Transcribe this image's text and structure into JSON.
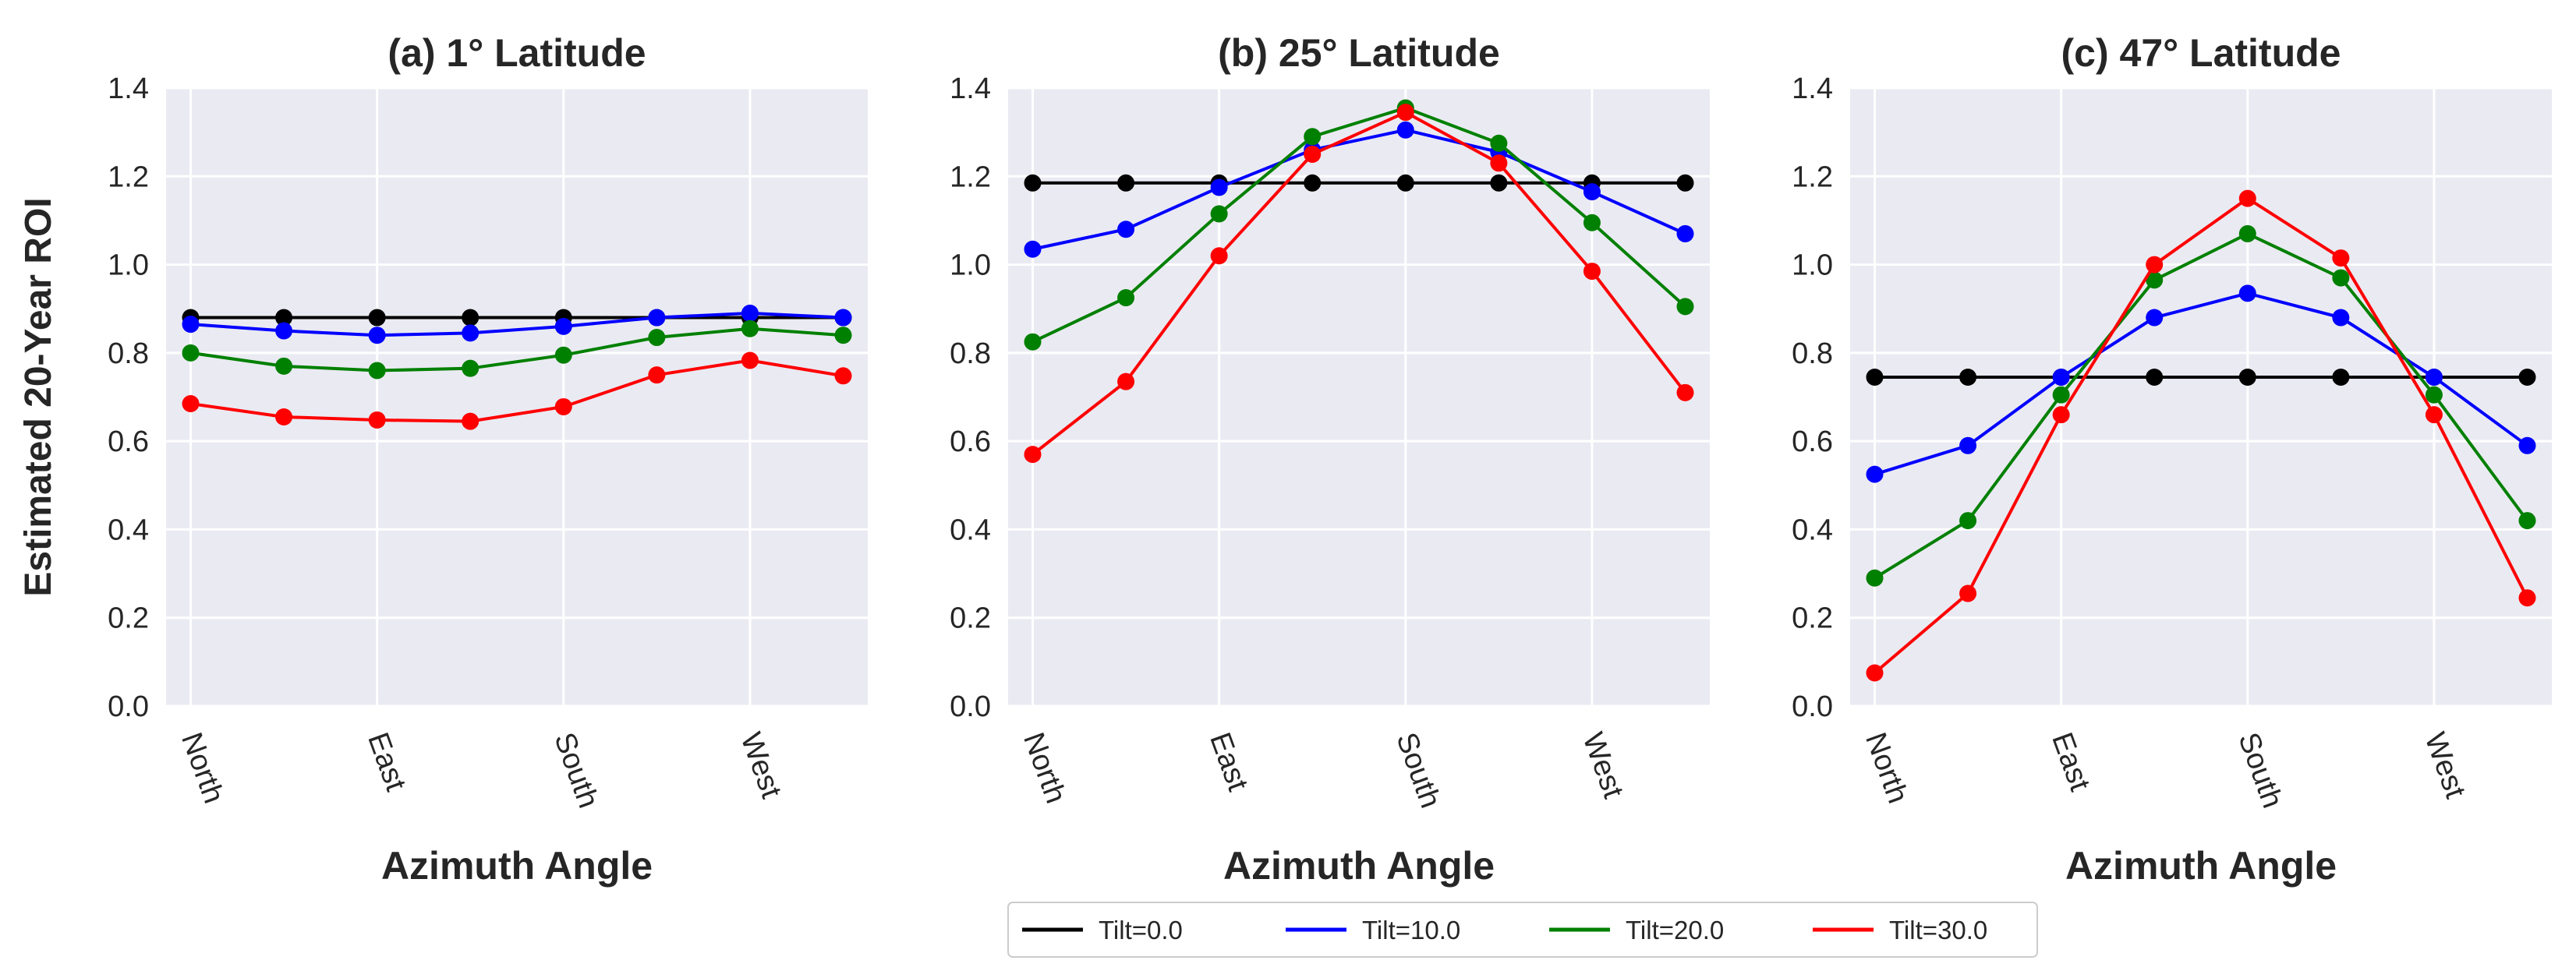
{
  "legend": {
    "placement": "bottom-center",
    "entries": [
      {
        "label": "Tilt=0.0",
        "color": "#000000"
      },
      {
        "label": "Tilt=10.0",
        "color": "#0000ff"
      },
      {
        "label": "Tilt=20.0",
        "color": "#008000"
      },
      {
        "label": "Tilt=30.0",
        "color": "#ff0000"
      }
    ]
  },
  "chart_data": [
    {
      "type": "line",
      "title": "(a) 1° Latitude",
      "xlabel": "Azimuth Angle",
      "ylabel": "Estimated 20-Year ROI",
      "ylim": [
        0,
        1.4
      ],
      "yticks": [
        "0.0",
        "0.2",
        "0.4",
        "0.6",
        "0.8",
        "1.0",
        "1.2",
        "1.4"
      ],
      "xticks": [
        "North",
        "East",
        "South",
        "West"
      ],
      "x": [
        0,
        45,
        90,
        135,
        180,
        225,
        270,
        315
      ],
      "grid": true,
      "series": [
        {
          "name": "Tilt=0.0",
          "color": "#000000",
          "values": [
            0.88,
            0.88,
            0.88,
            0.88,
            0.88,
            0.88,
            0.88,
            0.88
          ]
        },
        {
          "name": "Tilt=10.0",
          "color": "#0000ff",
          "values": [
            0.865,
            0.85,
            0.84,
            0.845,
            0.86,
            0.88,
            0.89,
            0.88
          ]
        },
        {
          "name": "Tilt=20.0",
          "color": "#008000",
          "values": [
            0.8,
            0.77,
            0.76,
            0.765,
            0.795,
            0.835,
            0.855,
            0.84
          ]
        },
        {
          "name": "Tilt=30.0",
          "color": "#ff0000",
          "values": [
            0.685,
            0.655,
            0.648,
            0.645,
            0.678,
            0.75,
            0.783,
            0.748
          ]
        }
      ]
    },
    {
      "type": "line",
      "title": "(b) 25° Latitude",
      "xlabel": "Azimuth Angle",
      "ylabel": "",
      "ylim": [
        0,
        1.4
      ],
      "yticks": [
        "0.0",
        "0.2",
        "0.4",
        "0.6",
        "0.8",
        "1.0",
        "1.2",
        "1.4"
      ],
      "xticks": [
        "North",
        "East",
        "South",
        "West"
      ],
      "x": [
        0,
        45,
        90,
        135,
        180,
        225,
        270,
        315
      ],
      "grid": true,
      "series": [
        {
          "name": "Tilt=0.0",
          "color": "#000000",
          "values": [
            1.185,
            1.185,
            1.185,
            1.185,
            1.185,
            1.185,
            1.185,
            1.185
          ]
        },
        {
          "name": "Tilt=10.0",
          "color": "#0000ff",
          "values": [
            1.035,
            1.08,
            1.175,
            1.26,
            1.305,
            1.255,
            1.165,
            1.07
          ]
        },
        {
          "name": "Tilt=20.0",
          "color": "#008000",
          "values": [
            0.825,
            0.925,
            1.115,
            1.29,
            1.355,
            1.275,
            1.095,
            0.905
          ]
        },
        {
          "name": "Tilt=30.0",
          "color": "#ff0000",
          "values": [
            0.57,
            0.735,
            1.02,
            1.25,
            1.345,
            1.23,
            0.985,
            0.71
          ]
        }
      ]
    },
    {
      "type": "line",
      "title": "(c) 47° Latitude",
      "xlabel": "Azimuth Angle",
      "ylabel": "",
      "ylim": [
        0,
        1.4
      ],
      "yticks": [
        "0.0",
        "0.2",
        "0.4",
        "0.6",
        "0.8",
        "1.0",
        "1.2",
        "1.4"
      ],
      "xticks": [
        "North",
        "East",
        "South",
        "West"
      ],
      "x": [
        0,
        45,
        90,
        135,
        180,
        225,
        270,
        315
      ],
      "grid": true,
      "series": [
        {
          "name": "Tilt=0.0",
          "color": "#000000",
          "values": [
            0.745,
            0.745,
            0.745,
            0.745,
            0.745,
            0.745,
            0.745,
            0.745
          ]
        },
        {
          "name": "Tilt=10.0",
          "color": "#0000ff",
          "values": [
            0.525,
            0.59,
            0.745,
            0.88,
            0.935,
            0.88,
            0.745,
            0.59
          ]
        },
        {
          "name": "Tilt=20.0",
          "color": "#008000",
          "values": [
            0.29,
            0.42,
            0.705,
            0.965,
            1.07,
            0.97,
            0.705,
            0.42
          ]
        },
        {
          "name": "Tilt=30.0",
          "color": "#ff0000",
          "values": [
            0.075,
            0.255,
            0.66,
            1.0,
            1.15,
            1.015,
            0.66,
            0.245
          ]
        }
      ]
    }
  ]
}
